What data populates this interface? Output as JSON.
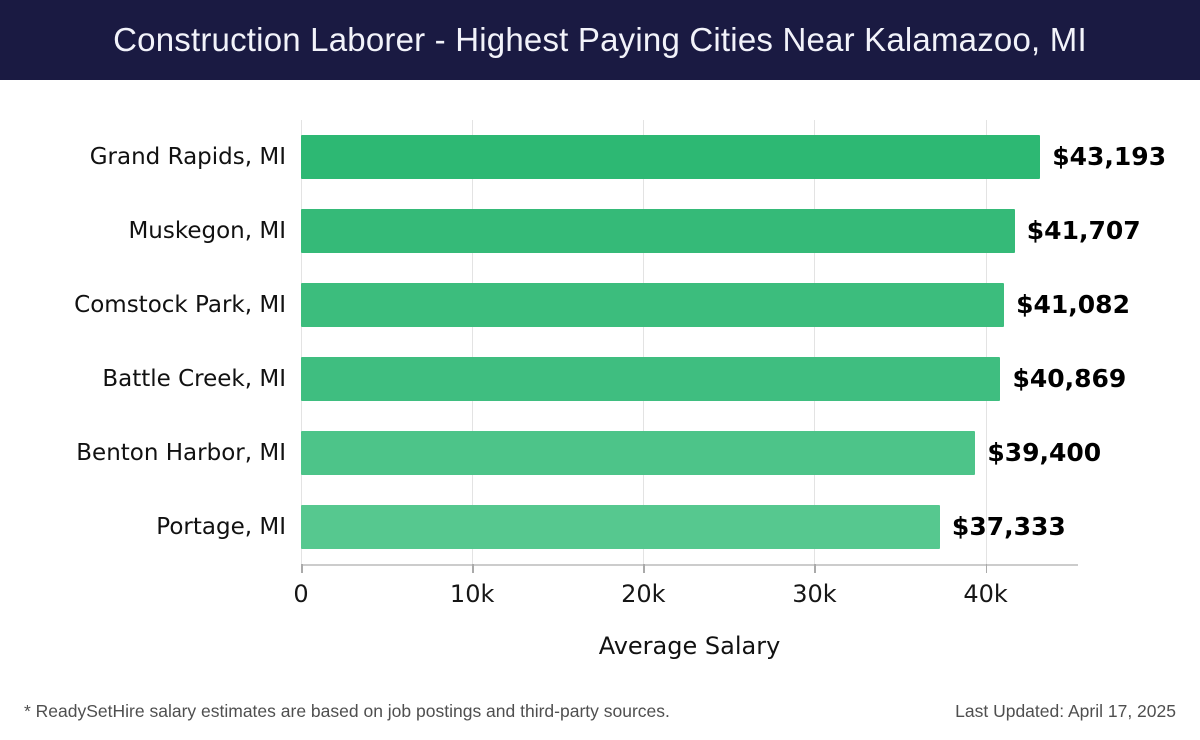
{
  "header": {
    "bg_color": "#1a1a42",
    "text_color": "#f2f3fa"
  },
  "chart_data": {
    "type": "bar",
    "orientation": "horizontal",
    "title": "Construction Laborer - Highest Paying Cities Near Kalamazoo, MI",
    "categories": [
      "Grand Rapids, MI",
      "Muskegon, MI",
      "Comstock Park, MI",
      "Battle Creek, MI",
      "Benton Harbor, MI",
      "Portage, MI"
    ],
    "values": [
      43193,
      41707,
      41082,
      40869,
      39400,
      37333
    ],
    "value_labels": [
      "$43,193",
      "$41,707",
      "$41,082",
      "$40,869",
      "$39,400",
      "$37,333"
    ],
    "bar_colors": [
      "#2db873",
      "#35ba78",
      "#3cbd7d",
      "#3fbe80",
      "#4dc489",
      "#56c88f"
    ],
    "xlabel": "Average Salary",
    "xlim": [
      0,
      45400
    ],
    "xticks": [
      0,
      10000,
      20000,
      30000,
      40000
    ],
    "xtick_labels": [
      "0",
      "10k",
      "20k",
      "30k",
      "40k"
    ],
    "grid": true,
    "gridline_color": "#e3e3e3",
    "axis_line_color": "#cccccc",
    "legend": "none"
  },
  "footer": {
    "note": "* ReadySetHire salary estimates are based on job postings and third-party sources.",
    "last_updated": "Last Updated: April 17, 2025"
  }
}
